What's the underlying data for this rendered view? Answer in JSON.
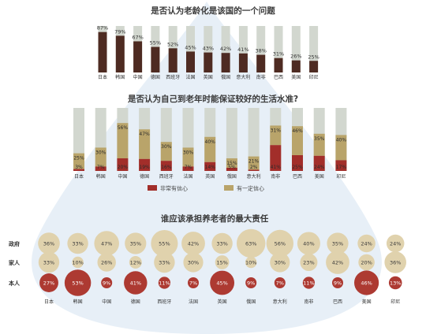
{
  "page": {
    "colors": {
      "background": "#ffffff",
      "watermark": "#dfe9f4",
      "bar_bg": "#d2d7cf",
      "dark_brown": "#4e2b22",
      "dark_red": "#a22e2a",
      "tan": "#b9a46a",
      "bubble_light": "#e0d2ad",
      "bubble_red": "#ad3a32"
    }
  },
  "chart_data": [
    {
      "type": "bar",
      "title": "是否认为老龄化是该国的一个问题",
      "categories": [
        "日本",
        "韩国",
        "中国",
        "德国",
        "西班牙",
        "法国",
        "英国",
        "俄国",
        "意大利",
        "南非",
        "巴西",
        "美国",
        "印尼"
      ],
      "values": [
        87,
        79,
        67,
        55,
        52,
        45,
        43,
        42,
        41,
        38,
        31,
        26,
        25
      ],
      "value_labels": [
        "87%",
        "79%",
        "67%",
        "55%",
        "52%",
        "45%",
        "43%",
        "42%",
        "41%",
        "38%",
        "31%",
        "26%",
        "25%"
      ],
      "ylim": [
        0,
        100
      ],
      "grid": false
    },
    {
      "type": "bar",
      "title": "是否认为自己到老年时能保证较好的生活水准?",
      "categories": [
        "日本",
        "韩国",
        "中国",
        "德国",
        "西班牙",
        "法国",
        "英国",
        "俄国",
        "意大利",
        "南非",
        "巴西",
        "美国",
        "印尼"
      ],
      "ylim": [
        0,
        100
      ],
      "series": [
        {
          "name": "非常有信心",
          "values": [
            3,
            7,
            20,
            19,
            16,
            7,
            14,
            5,
            2,
            41,
            25,
            24,
            17
          ],
          "labels": [
            "3%",
            "7%",
            "20%",
            "19%",
            "16%",
            "7%",
            "14%",
            "5%",
            "2%",
            "41%",
            "25%",
            "24%",
            "17%"
          ]
        },
        {
          "name": "有一定信心",
          "values": [
            25,
            30,
            56,
            47,
            30,
            30,
            40,
            15,
            21,
            31,
            46,
            35,
            40
          ],
          "labels": [
            "25%",
            "30%",
            "56%",
            "47%",
            "30%",
            "30%",
            "40%",
            "15%",
            "21%",
            "31%",
            "46%",
            "35%",
            "40%"
          ]
        }
      ],
      "legend": {
        "position": "bottom-center",
        "items": [
          "非常有信心",
          "有一定信心"
        ]
      }
    },
    {
      "type": "scatter",
      "title": "谁应该承担养老者的最大责任",
      "categories": [
        "日本",
        "韩国",
        "中国",
        "德国",
        "西班牙",
        "法国",
        "英国",
        "俄国",
        "意大利",
        "南非",
        "巴西",
        "美国",
        "印尼"
      ],
      "rows": [
        "政府",
        "家人",
        "本人"
      ],
      "series": [
        {
          "name": "政府",
          "values": [
            36,
            33,
            47,
            35,
            55,
            42,
            33,
            63,
            56,
            40,
            35,
            24,
            24
          ],
          "labels": [
            "36%",
            "33%",
            "47%",
            "35%",
            "55%",
            "42%",
            "33%",
            "63%",
            "56%",
            "40%",
            "35%",
            "24%",
            "24%"
          ]
        },
        {
          "name": "家人",
          "values": [
            33,
            10,
            26,
            12,
            33,
            30,
            15,
            10,
            30,
            23,
            42,
            20,
            36
          ],
          "labels": [
            "33%",
            "10%",
            "26%",
            "12%",
            "33%",
            "30%",
            "15%",
            "10%",
            "30%",
            "23%",
            "42%",
            "20%",
            "36%"
          ]
        },
        {
          "name": "本人",
          "values": [
            27,
            53,
            9,
            41,
            11,
            7,
            45,
            9,
            7,
            11,
            9,
            46,
            13
          ],
          "labels": [
            "27%",
            "53%",
            "9%",
            "41%",
            "11%",
            "7%",
            "45%",
            "9%",
            "7%",
            "11%",
            "9%",
            "46%",
            "13%"
          ]
        }
      ]
    }
  ]
}
